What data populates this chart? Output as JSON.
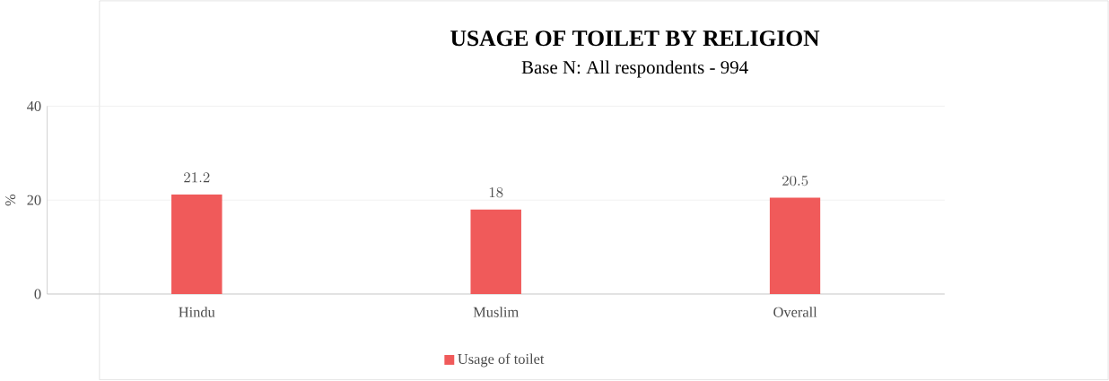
{
  "chart_data": {
    "type": "bar",
    "title": "USAGE OF TOILET BY RELIGION",
    "subtitle": "Base N: All respondents - 994",
    "ylabel": "%",
    "categories": [
      "Hindu",
      "Muslim",
      "Overall"
    ],
    "series": [
      {
        "name": "Usage of toilet",
        "color": "#f05a5a",
        "values": [
          21.2,
          18,
          20.5
        ]
      }
    ],
    "ylim": [
      0,
      40
    ],
    "yticks": [
      0,
      20,
      40
    ],
    "grid": "y",
    "legend": "bottom",
    "data_labels": true
  }
}
